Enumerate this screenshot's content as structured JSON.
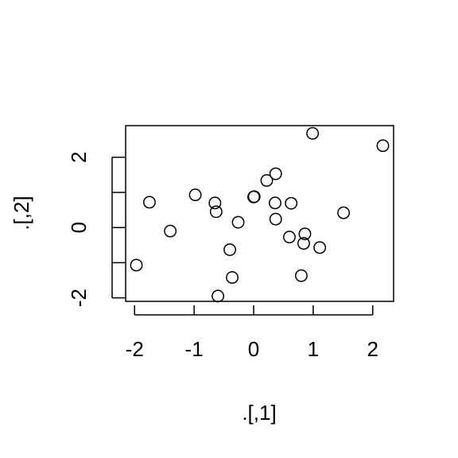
{
  "chart_data": {
    "type": "scatter",
    "title": "",
    "xlabel": ".[,1]",
    "ylabel": ".[,2]",
    "xlim": [
      -2.15,
      2.35
    ],
    "ylim": [
      -2.1,
      2.9
    ],
    "x_ticks": [
      -2,
      -1,
      0,
      1,
      2
    ],
    "x_tick_labels": [
      "-2",
      "-1",
      "0",
      "1",
      "2"
    ],
    "y_ticks": [
      -2,
      -1,
      0,
      1,
      2
    ],
    "y_tick_labels": [
      "-2",
      "",
      "0",
      "",
      "2"
    ],
    "grid": false,
    "marker": "open-circle",
    "points": [
      {
        "x": -1.97,
        "y": -1.07
      },
      {
        "x": -1.75,
        "y": 0.72
      },
      {
        "x": -1.4,
        "y": -0.1
      },
      {
        "x": -0.98,
        "y": 0.93
      },
      {
        "x": -0.65,
        "y": 0.7
      },
      {
        "x": -0.63,
        "y": 0.45
      },
      {
        "x": -0.6,
        "y": -1.95
      },
      {
        "x": -0.4,
        "y": -0.63
      },
      {
        "x": -0.36,
        "y": -1.42
      },
      {
        "x": -0.26,
        "y": 0.15
      },
      {
        "x": 0.0,
        "y": 0.87
      },
      {
        "x": 0.01,
        "y": 0.88
      },
      {
        "x": 0.22,
        "y": 1.34
      },
      {
        "x": 0.36,
        "y": 0.7
      },
      {
        "x": 0.37,
        "y": 1.53
      },
      {
        "x": 0.37,
        "y": 0.24
      },
      {
        "x": 0.6,
        "y": -0.27
      },
      {
        "x": 0.63,
        "y": 0.69
      },
      {
        "x": 0.8,
        "y": -1.37
      },
      {
        "x": 0.84,
        "y": -0.45
      },
      {
        "x": 0.86,
        "y": -0.18
      },
      {
        "x": 0.99,
        "y": 2.68
      },
      {
        "x": 1.11,
        "y": -0.57
      },
      {
        "x": 1.51,
        "y": 0.42
      },
      {
        "x": 2.17,
        "y": 2.33
      }
    ]
  }
}
